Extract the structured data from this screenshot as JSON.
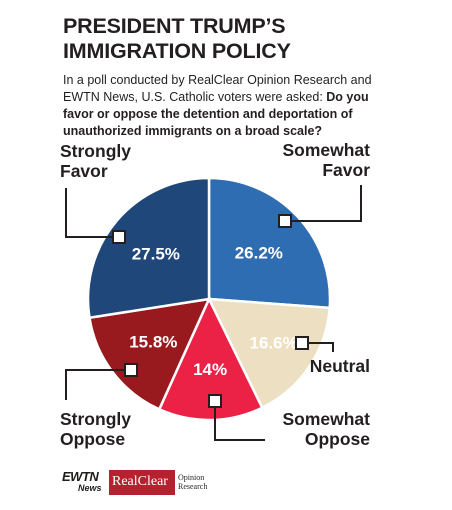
{
  "title_lines": [
    "PRESIDENT TRUMP’S",
    "IMMIGRATION POLICY"
  ],
  "intro": {
    "lead": "In a poll conducted by RealClear Opinion Research and EWTN News, U.S. Catholic voters were asked: ",
    "question": "Do you favor or oppose the detention and deportation of unauthorized immigrants on a broad scale?"
  },
  "chart_data": {
    "type": "pie",
    "title": "",
    "slices": [
      {
        "label_lines": [
          "Somewhat",
          "Favor"
        ],
        "value": 26.2,
        "value_label": "26.2%",
        "color": "#2e6db2",
        "value_color": "#ffffff"
      },
      {
        "label_lines": [
          "Neutral"
        ],
        "value": 16.6,
        "value_label": "16.6%",
        "color": "#ede0c2",
        "value_color": "#ffffff"
      },
      {
        "label_lines": [
          "Somewhat",
          "Oppose"
        ],
        "value": 14,
        "value_label": "14%",
        "color": "#eb2146",
        "value_color": "#ffffff"
      },
      {
        "label_lines": [
          "Strongly",
          "Oppose"
        ],
        "value": 15.8,
        "value_label": "15.8%",
        "color": "#981a1e",
        "value_color": "#ffffff"
      },
      {
        "label_lines": [
          "Strongly",
          "Favor"
        ],
        "value": 27.5,
        "value_label": "27.5%",
        "color": "#1f477a",
        "value_color": "#ffffff"
      }
    ],
    "start_direction": "top",
    "order": "clockwise",
    "legend": "none"
  },
  "logos": {
    "ewtn": "EWTN",
    "ewtn_sub": "News",
    "realclear": "RealClear",
    "opinion_lines": [
      "Opinion",
      "Research"
    ]
  }
}
